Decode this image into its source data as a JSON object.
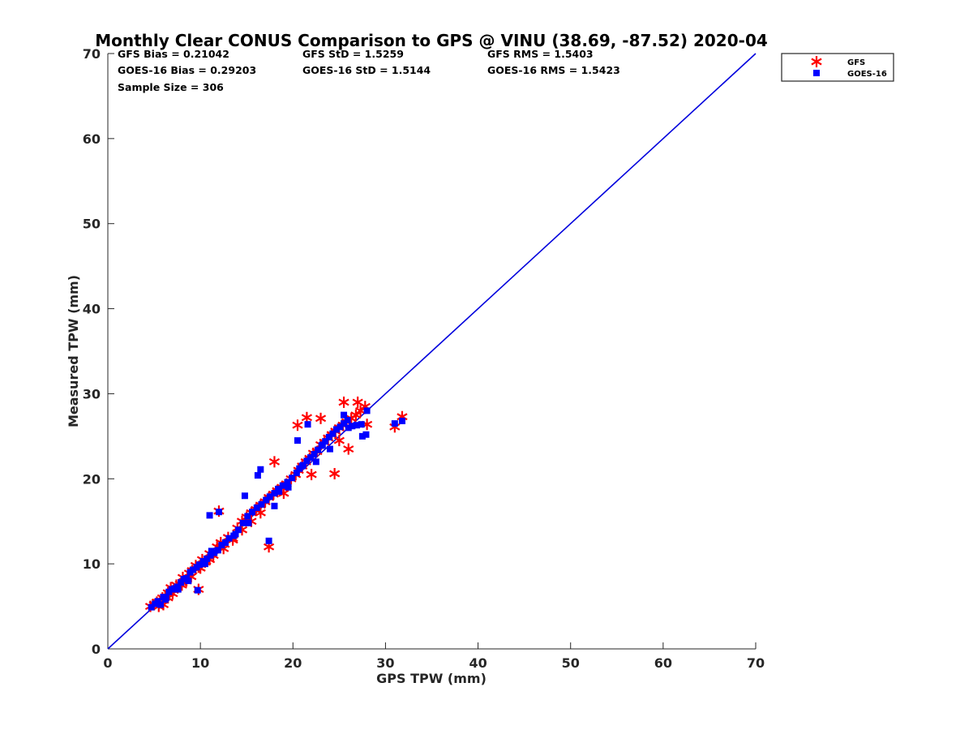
{
  "chart_data": {
    "type": "scatter",
    "title": "Monthly Clear CONUS Comparison to GPS @ VINU (38.69, -87.52) 2020-04",
    "xlabel": "GPS TPW (mm)",
    "ylabel": "Measured TPW (mm)",
    "xlim": [
      0,
      70
    ],
    "ylim": [
      0,
      70
    ],
    "xticks": [
      "0",
      "10",
      "20",
      "30",
      "40",
      "50",
      "60",
      "70"
    ],
    "yticks": [
      "0",
      "10",
      "20",
      "30",
      "40",
      "50",
      "60",
      "70"
    ],
    "grid": false,
    "legend_position": "top-right outside",
    "stats": [
      "GFS Bias = 0.21042",
      "GOES-16 Bias = 0.29203",
      "Sample Size = 306",
      "GFS StD = 1.5259",
      "GOES-16 StD = 1.5144",
      "GFS RMS = 1.5403",
      "GOES-16 RMS = 1.5423"
    ],
    "reference_line": {
      "x": [
        0,
        70
      ],
      "y": [
        0,
        70
      ],
      "color": "#0000dd"
    },
    "series": [
      {
        "name": "GFS",
        "marker": "asterisk",
        "color": "#ff0000",
        "x": [
          4.6,
          5.0,
          5.3,
          5.6,
          5.9,
          6.2,
          6.5,
          6.8,
          7.1,
          7.4,
          7.8,
          8.1,
          8.4,
          8.8,
          9.1,
          9.5,
          9.8,
          10.2,
          10.6,
          11.0,
          11.4,
          11.8,
          12.2,
          12.6,
          13.0,
          13.5,
          14.0,
          14.5,
          15.0,
          15.5,
          16.0,
          16.5,
          17.0,
          17.4,
          17.9,
          18.3,
          18.8,
          19.3,
          19.8,
          20.3,
          20.6,
          21.0,
          21.4,
          21.8,
          22.2,
          22.6,
          23.0,
          23.4,
          23.8,
          24.2,
          24.6,
          25.0,
          25.4,
          25.8,
          26.3,
          26.8,
          27.3,
          27.8,
          28.0,
          31.0,
          31.8,
          17.4,
          18.0,
          20.5,
          21.5,
          23.0,
          24.5,
          25.5,
          27.0,
          9.8,
          12.0,
          5.5,
          6.0,
          7.0,
          8.0,
          9.0,
          10.0,
          11.0,
          13.5,
          15.5,
          16.5,
          19.0,
          22.0,
          25.0,
          26.0,
          6.5,
          8.5,
          10.5,
          12.5,
          14.5
        ],
        "y": [
          5.0,
          5.2,
          5.5,
          5.4,
          6.0,
          6.1,
          6.6,
          7.2,
          6.9,
          7.5,
          7.6,
          8.4,
          8.1,
          8.9,
          9.2,
          9.8,
          9.6,
          10.5,
          10.3,
          11.2,
          11.0,
          12.0,
          12.5,
          12.3,
          13.1,
          13.0,
          14.2,
          15.0,
          15.5,
          16.0,
          16.4,
          16.9,
          17.3,
          17.8,
          18.2,
          18.6,
          19.0,
          19.4,
          20.0,
          20.5,
          21.0,
          21.5,
          22.0,
          22.4,
          23.0,
          23.2,
          24.0,
          24.3,
          24.8,
          25.2,
          25.6,
          26.0,
          26.3,
          26.7,
          27.1,
          27.5,
          28.0,
          28.5,
          26.4,
          26.1,
          27.3,
          12.0,
          22.0,
          26.3,
          27.2,
          27.1,
          20.6,
          29.0,
          29.0,
          7.0,
          16.2,
          5.0,
          5.2,
          6.5,
          7.5,
          8.5,
          9.5,
          10.5,
          12.8,
          15.0,
          16.0,
          18.3,
          20.5,
          24.5,
          23.5,
          6.0,
          8.0,
          10.2,
          11.8,
          14.0
        ]
      },
      {
        "name": "GOES-16",
        "marker": "square",
        "color": "#0000ff",
        "x": [
          4.7,
          5.1,
          5.4,
          5.7,
          6.0,
          6.3,
          6.6,
          6.9,
          7.2,
          7.5,
          7.9,
          8.2,
          8.5,
          8.9,
          9.2,
          9.6,
          9.9,
          10.3,
          10.7,
          11.1,
          11.5,
          11.9,
          12.3,
          12.7,
          13.1,
          13.6,
          14.1,
          14.6,
          15.1,
          15.6,
          16.1,
          16.6,
          17.1,
          17.5,
          18.0,
          18.4,
          18.9,
          19.4,
          19.9,
          20.4,
          20.7,
          21.1,
          21.5,
          21.9,
          22.3,
          22.7,
          23.1,
          23.5,
          23.9,
          24.3,
          24.7,
          25.1,
          25.5,
          25.9,
          26.4,
          26.9,
          27.4,
          27.9,
          31.0,
          31.8,
          11.0,
          14.8,
          16.2,
          16.5,
          17.4,
          18.0,
          20.5,
          21.6,
          23.2,
          25.5,
          28.0,
          9.7,
          12.0,
          6.2,
          7.6,
          8.7,
          10.5,
          11.2,
          13.8,
          15.2,
          18.5,
          19.5,
          21.0,
          22.5,
          24.0,
          26.0,
          27.5
        ],
        "y": [
          4.9,
          5.3,
          5.6,
          5.2,
          6.1,
          6.0,
          6.7,
          7.0,
          7.1,
          7.3,
          7.8,
          8.2,
          8.3,
          9.0,
          9.3,
          9.6,
          9.9,
          10.3,
          10.6,
          11.0,
          11.3,
          11.6,
          12.2,
          12.5,
          13.0,
          13.3,
          14.0,
          14.8,
          15.6,
          16.1,
          16.6,
          17.0,
          17.5,
          17.9,
          18.3,
          18.8,
          19.2,
          19.6,
          20.1,
          20.7,
          21.2,
          21.6,
          22.1,
          22.5,
          22.9,
          23.4,
          23.9,
          24.4,
          24.9,
          25.3,
          25.8,
          26.1,
          26.5,
          26.9,
          26.2,
          26.3,
          26.4,
          25.2,
          26.5,
          26.8,
          15.7,
          18.0,
          20.4,
          21.1,
          12.7,
          16.8,
          24.5,
          26.4,
          24.0,
          27.5,
          28.0,
          6.9,
          16.1,
          5.8,
          7.0,
          8.0,
          10.0,
          11.5,
          13.5,
          14.8,
          18.5,
          19.0,
          21.5,
          22.0,
          23.5,
          26.0,
          25.0
        ]
      }
    ]
  }
}
